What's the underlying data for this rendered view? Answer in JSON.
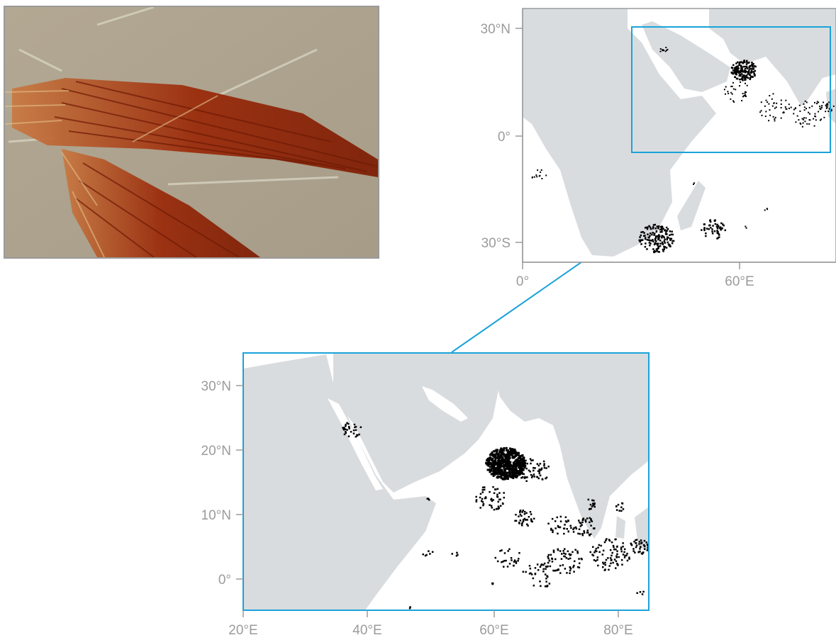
{
  "photo": {
    "icon": "trichodesmium-colonies-photo"
  },
  "overview_map": {
    "y_ticks": [
      "30°N",
      "0°",
      "30°S"
    ],
    "x_ticks": [
      "0°",
      "60°E"
    ]
  },
  "detail_map": {
    "y_ticks": [
      "30°N",
      "20°N",
      "10°N",
      "0°"
    ],
    "x_ticks": [
      "20°E",
      "40°E",
      "60°E",
      "80°E"
    ]
  },
  "colors": {
    "land": "#d9dcdf",
    "ocean": "#ffffff",
    "highlight": "#1aa3d9",
    "axis": "#9b9b9b",
    "observation": "#000000"
  }
}
